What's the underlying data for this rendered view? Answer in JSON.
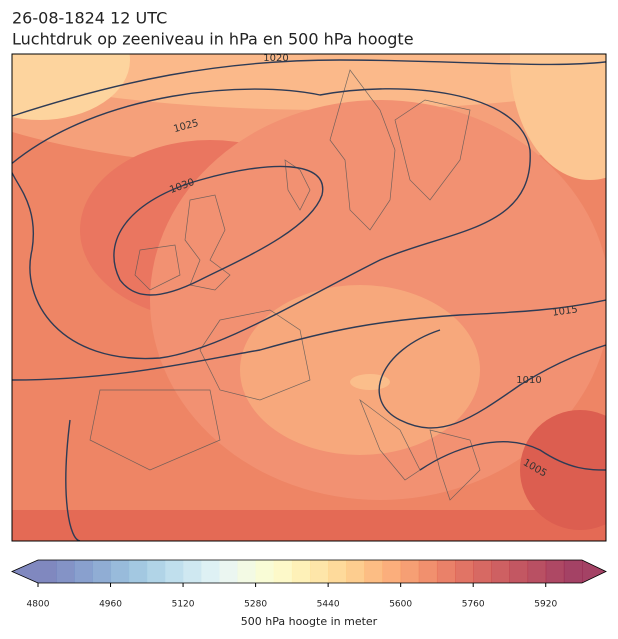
{
  "header": {
    "date": "26-08-1824 12 UTC",
    "title": "Luchtdruk op zeeniveau in hPa en 500 hPa hoogte"
  },
  "map": {
    "contour_labels": [
      1020,
      1025,
      1030,
      1015,
      1010,
      1005
    ]
  },
  "colorbar": {
    "label": "500 hPa hoogte in meter",
    "lim": [
      4800,
      6000
    ],
    "ticks": [
      4800,
      4960,
      5120,
      5280,
      5440,
      5600,
      5760,
      5920
    ],
    "colors": [
      "#6a73b4",
      "#6e80bc",
      "#748fc5",
      "#7c9fcd",
      "#86afd5",
      "#93bedc",
      "#a3cce3",
      "#b5d9ea",
      "#c7e4ef",
      "#d8eef2",
      "#e7f5ef",
      "#f1f9df",
      "#f8fbcf",
      "#fdf8bf",
      "#feeeab",
      "#fee29a",
      "#fed48a",
      "#fdc47b",
      "#fcb26f",
      "#faa065",
      "#f58e5c",
      "#ee7c55",
      "#e66b4f",
      "#dc5c4a",
      "#d04f48",
      "#c54446",
      "#b93a47",
      "#ad3148",
      "#a02849",
      "#94214a"
    ]
  }
}
